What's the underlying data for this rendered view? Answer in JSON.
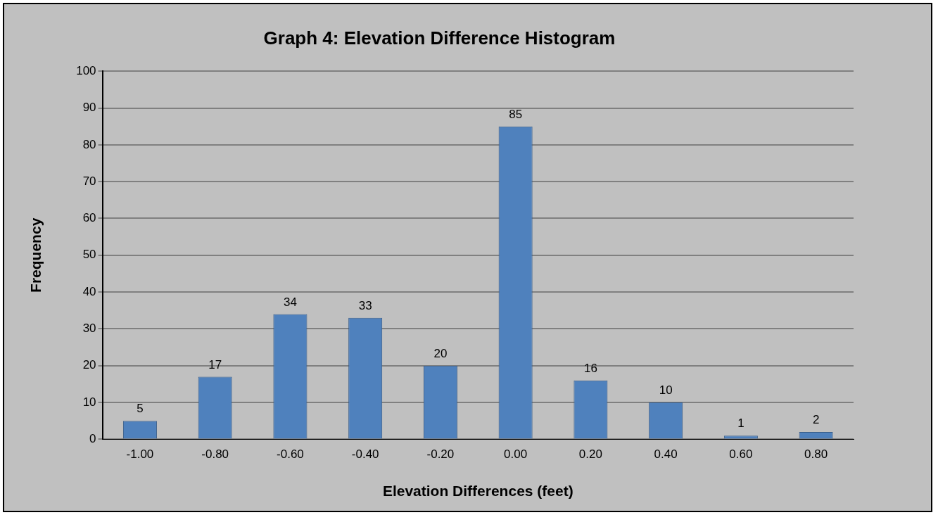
{
  "chart_data": {
    "type": "bar",
    "title": "Graph 4: Elevation Difference Histogram",
    "xlabel": "Elevation Differences (feet)",
    "ylabel": "Frequency",
    "categories": [
      "-1.00",
      "-0.80",
      "-0.60",
      "-0.40",
      "-0.20",
      "0.00",
      "0.20",
      "0.40",
      "0.60",
      "0.80"
    ],
    "values": [
      5,
      17,
      34,
      33,
      20,
      85,
      16,
      10,
      1,
      2
    ],
    "color": "#4f81bd",
    "ylim": [
      0,
      100
    ],
    "yticks": [
      0,
      10,
      20,
      30,
      40,
      50,
      60,
      70,
      80,
      90,
      100
    ],
    "grid": "y",
    "data_labels": true
  }
}
